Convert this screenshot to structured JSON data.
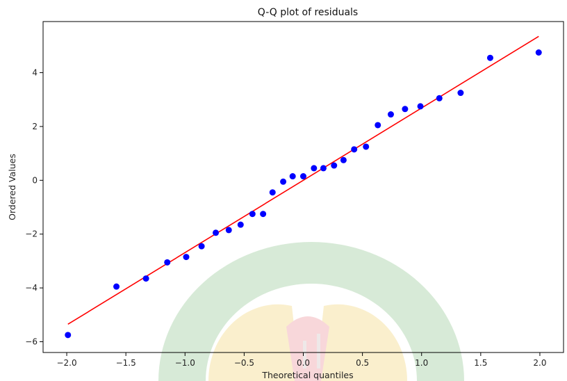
{
  "chart_data": {
    "type": "scatter",
    "title": "Q-Q plot of residuals",
    "xlabel": "Theoretical quantiles",
    "ylabel": "Ordered Values",
    "xlim": [
      -2.2,
      2.2
    ],
    "ylim": [
      -6.4,
      5.9
    ],
    "xticks": [
      -2.0,
      -1.5,
      -1.0,
      -0.5,
      0.0,
      0.5,
      1.0,
      1.5,
      2.0
    ],
    "xtick_labels": [
      "−2.0",
      "−1.5",
      "−1.0",
      "−0.5",
      "0.0",
      "0.5",
      "1.0",
      "1.5",
      "2.0"
    ],
    "yticks": [
      -6,
      -4,
      -2,
      0,
      2,
      4
    ],
    "ytick_labels": [
      "−6",
      "−4",
      "−2",
      "0",
      "2",
      "4"
    ],
    "grid": false,
    "points": [
      {
        "x": -1.99,
        "y": -5.75
      },
      {
        "x": -1.58,
        "y": -3.95
      },
      {
        "x": -1.33,
        "y": -3.65
      },
      {
        "x": -1.15,
        "y": -3.05
      },
      {
        "x": -0.99,
        "y": -2.85
      },
      {
        "x": -0.86,
        "y": -2.45
      },
      {
        "x": -0.74,
        "y": -1.95
      },
      {
        "x": -0.63,
        "y": -1.85
      },
      {
        "x": -0.53,
        "y": -1.65
      },
      {
        "x": -0.43,
        "y": -1.25
      },
      {
        "x": -0.34,
        "y": -1.25
      },
      {
        "x": -0.26,
        "y": -0.45
      },
      {
        "x": -0.17,
        "y": -0.05
      },
      {
        "x": -0.09,
        "y": 0.15
      },
      {
        "x": 0.0,
        "y": 0.15
      },
      {
        "x": 0.09,
        "y": 0.45
      },
      {
        "x": 0.17,
        "y": 0.45
      },
      {
        "x": 0.26,
        "y": 0.55
      },
      {
        "x": 0.34,
        "y": 0.75
      },
      {
        "x": 0.43,
        "y": 1.15
      },
      {
        "x": 0.53,
        "y": 1.25
      },
      {
        "x": 0.63,
        "y": 2.05
      },
      {
        "x": 0.74,
        "y": 2.45
      },
      {
        "x": 0.86,
        "y": 2.65
      },
      {
        "x": 0.99,
        "y": 2.75
      },
      {
        "x": 1.15,
        "y": 3.05
      },
      {
        "x": 1.33,
        "y": 3.25
      },
      {
        "x": 1.58,
        "y": 4.55
      },
      {
        "x": 1.99,
        "y": 4.75
      }
    ],
    "fit_line": {
      "x": [
        -1.99,
        1.99
      ],
      "y": [
        -5.35,
        5.35
      ]
    },
    "colors": {
      "points": "#0000ff",
      "fit_line": "#ff0000"
    }
  }
}
